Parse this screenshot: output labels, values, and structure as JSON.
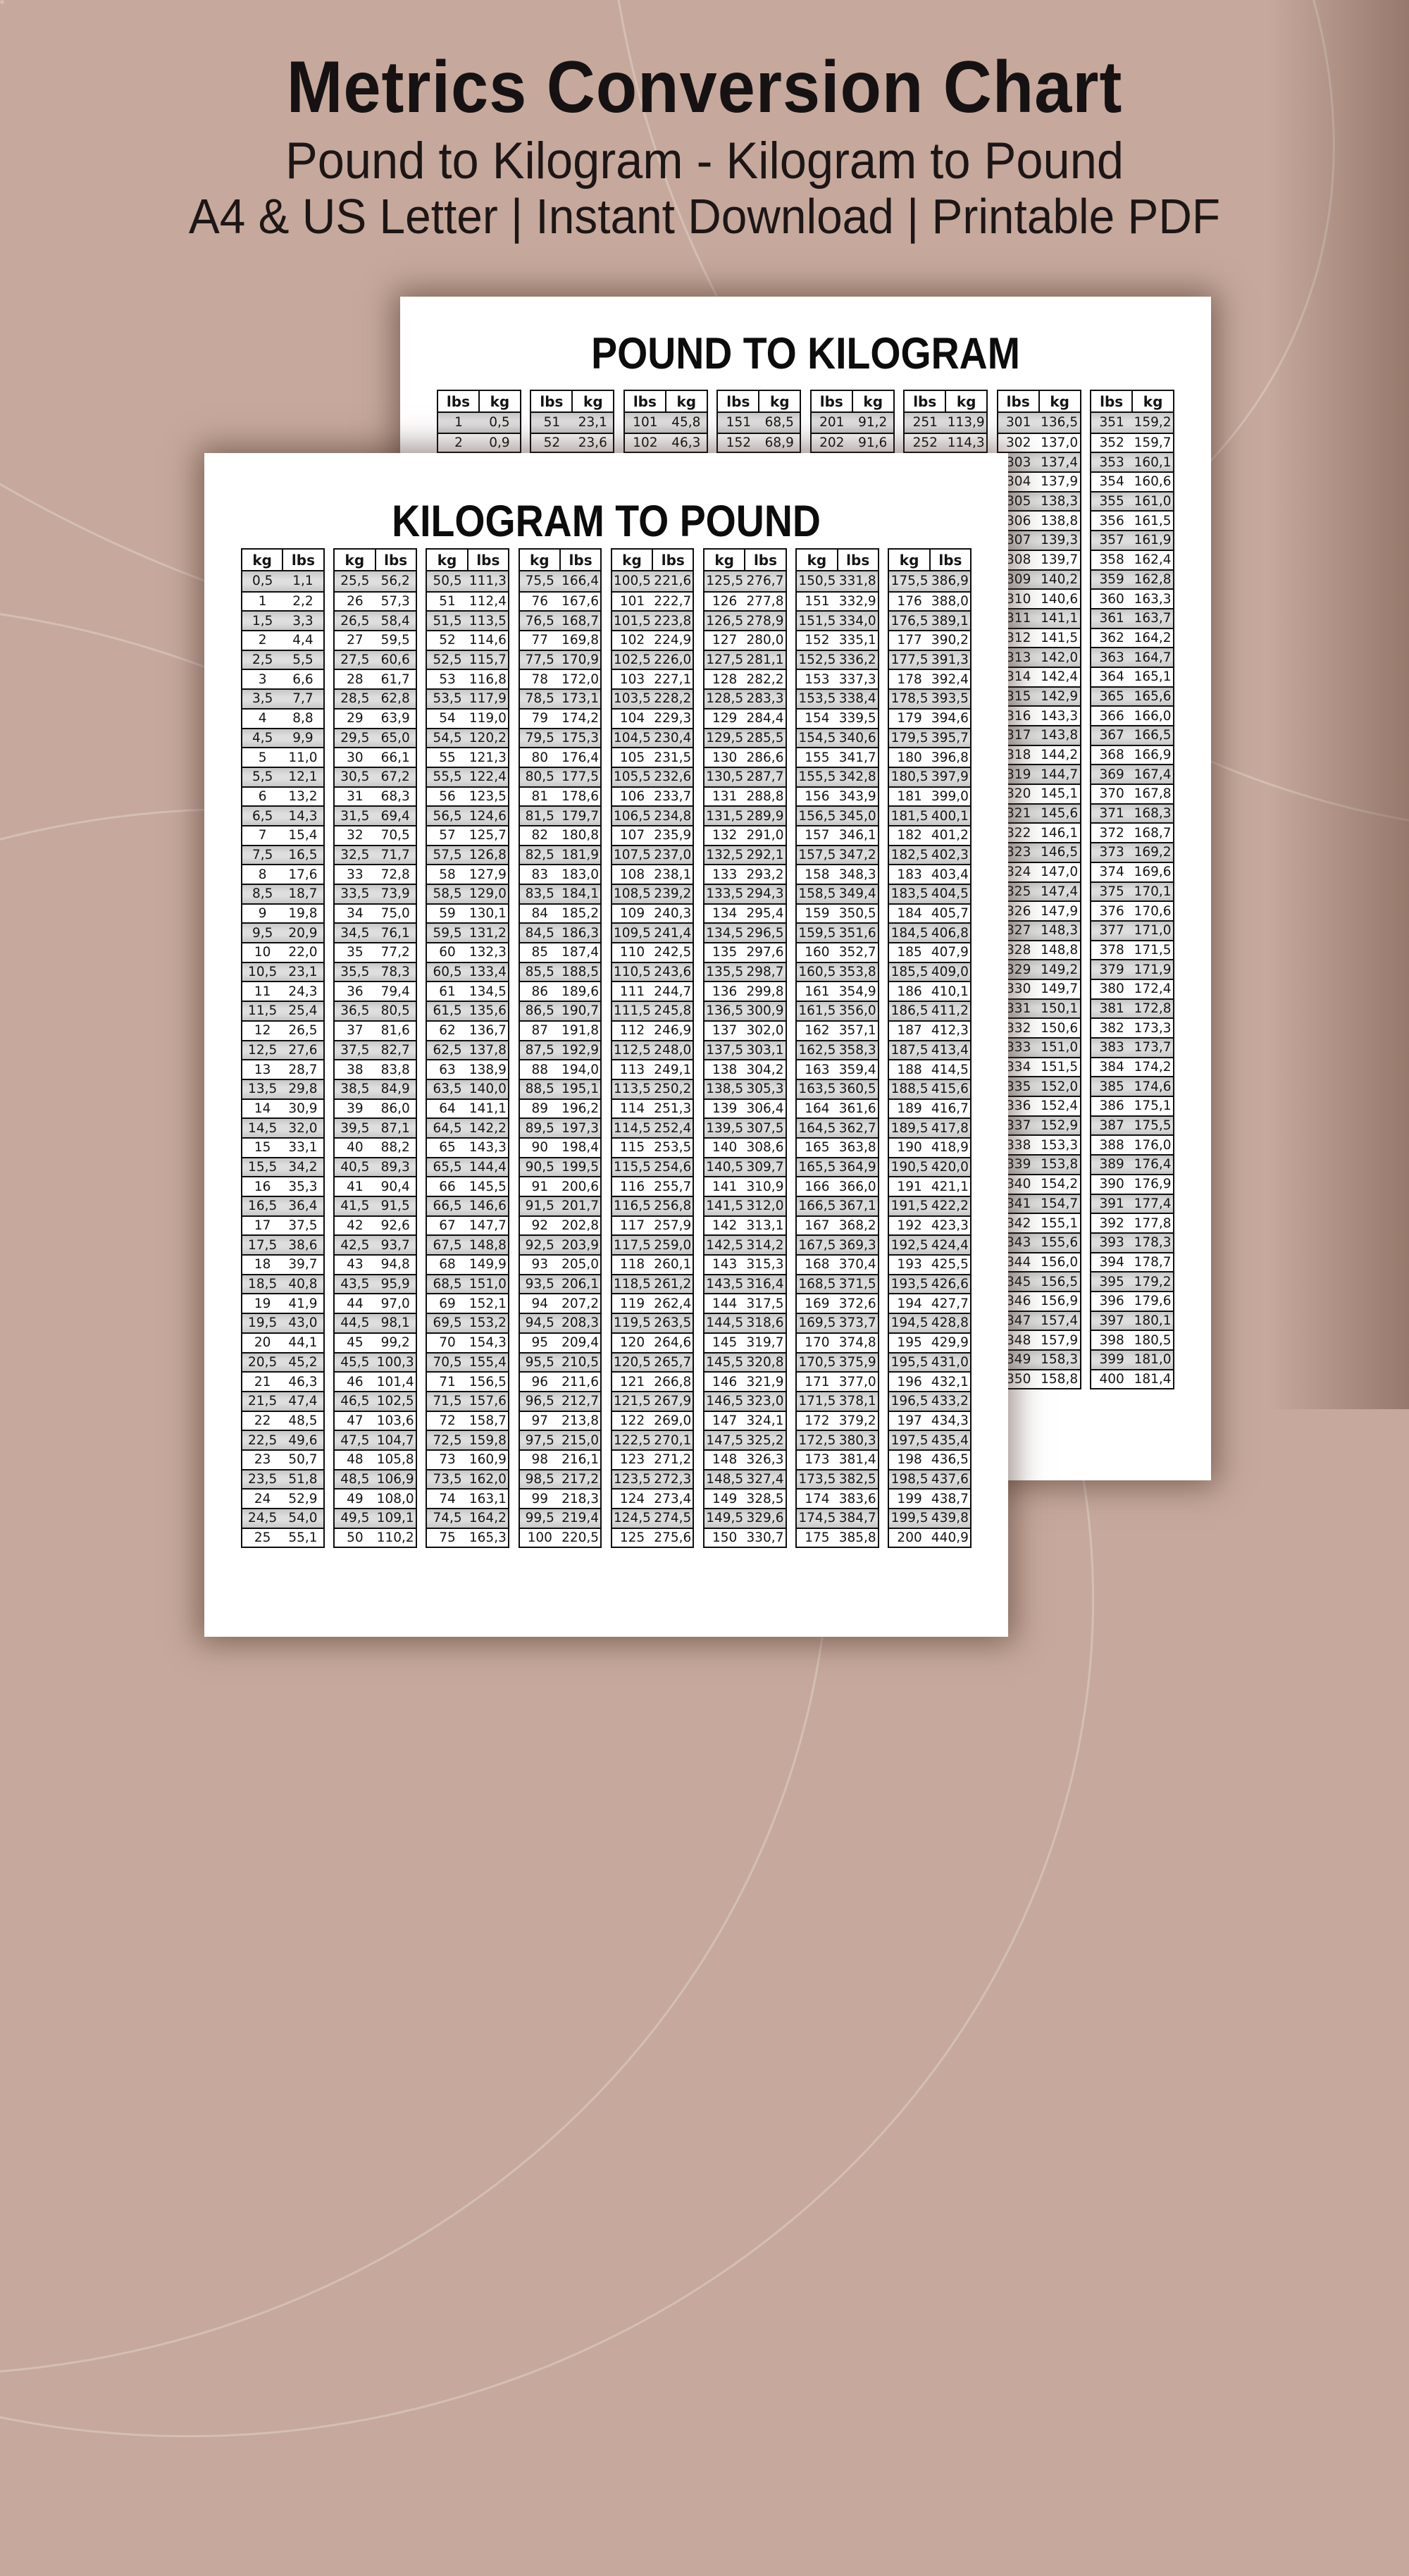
{
  "background_color": "#c6a99c",
  "accent_dark": "#161213",
  "header": {
    "title": "Metrics Conversion Chart",
    "subtitle": "Pound to Kilogram - Kilogram to Pound",
    "subtitle2": "A4 & US Letter | Instant Download | Printable PDF"
  },
  "sheets": [
    {
      "id": "pound-to-kilogram",
      "title": "POUND TO KILOGRAM",
      "unit_from": "lbs",
      "unit_to": "kg",
      "conversion_factor": 0.45359237,
      "decimals": 1,
      "decimal_separator": ",",
      "rows_per_column": 50,
      "columns": [
        {
          "start": 1,
          "step": 1
        },
        {
          "start": 51,
          "step": 1
        },
        {
          "start": 101,
          "step": 1
        },
        {
          "start": 151,
          "step": 1
        },
        {
          "start": 201,
          "step": 1
        },
        {
          "start": 251,
          "step": 1
        },
        {
          "start": 301,
          "step": 1
        },
        {
          "start": 351,
          "step": 1
        }
      ],
      "first_rows_example": [
        [
          "1",
          "0,5"
        ],
        [
          "2",
          "0,9"
        ],
        [
          "51",
          "23,1"
        ],
        [
          "52",
          "23,6"
        ],
        [
          "101",
          "45,8"
        ],
        [
          "102",
          "46,3"
        ],
        [
          "151",
          "68,5"
        ],
        [
          "152",
          "68,9"
        ],
        [
          "201",
          "91,2"
        ],
        [
          "202",
          "91,6"
        ],
        [
          "251",
          "113,9"
        ],
        [
          "252",
          "114,3"
        ],
        [
          "301",
          "136,5"
        ],
        [
          "302",
          "137,0"
        ],
        [
          "351",
          "159,2"
        ],
        [
          "352",
          "159,7"
        ],
        [
          "400",
          "181,4"
        ]
      ]
    },
    {
      "id": "kilogram-to-pound",
      "title": "KILOGRAM TO POUND",
      "unit_from": "kg",
      "unit_to": "lbs",
      "conversion_factor": 2.20462262,
      "decimals": 1,
      "decimal_separator": ",",
      "rows_per_column": 50,
      "columns": [
        {
          "start": 0.5,
          "step": 0.5
        },
        {
          "start": 25.5,
          "step": 0.5
        },
        {
          "start": 50.5,
          "step": 0.5
        },
        {
          "start": 75.5,
          "step": 0.5
        },
        {
          "start": 100.5,
          "step": 0.5
        },
        {
          "start": 125.5,
          "step": 0.5
        },
        {
          "start": 150.5,
          "step": 0.5
        },
        {
          "start": 175.5,
          "step": 0.5
        }
      ],
      "first_rows_example": [
        [
          "0,5",
          "1,1"
        ],
        [
          "1",
          "2,2"
        ],
        [
          "1,5",
          "3,3"
        ],
        [
          "25,5",
          "56,2"
        ],
        [
          "26",
          "57,3"
        ],
        [
          "50,5",
          "111,3"
        ],
        [
          "75,5",
          "166,4"
        ],
        [
          "100,5",
          "221,6"
        ],
        [
          "125,5",
          "276,7"
        ],
        [
          "150,5",
          "331,8"
        ],
        [
          "175,5",
          "386,9"
        ],
        [
          "21,5",
          "47,4"
        ],
        [
          "46,5",
          "102,5"
        ],
        [
          "71,5",
          "157,6"
        ],
        [
          "96,5",
          "212,7"
        ],
        [
          "121,5",
          "267,9"
        ],
        [
          "146,5",
          "323,0"
        ],
        [
          "171,5",
          "378,1"
        ],
        [
          "196,5",
          "433,2"
        ]
      ]
    }
  ]
}
